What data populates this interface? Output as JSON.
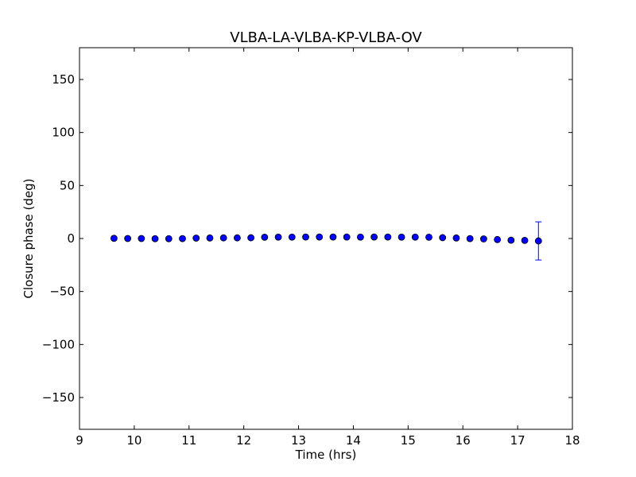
{
  "chart_data": {
    "type": "scatter",
    "title": "VLBA-LA-VLBA-KP-VLBA-OV",
    "xlabel": "Time (hrs)",
    "ylabel": "Closure phase (deg)",
    "xlim": [
      9,
      18
    ],
    "ylim": [
      -180,
      180
    ],
    "xticks": [
      9,
      10,
      11,
      12,
      13,
      14,
      15,
      16,
      17,
      18
    ],
    "xtick_labels": [
      "9",
      "10",
      "11",
      "12",
      "13",
      "14",
      "15",
      "16",
      "17",
      "18"
    ],
    "yticks": [
      -150,
      -100,
      -50,
      0,
      50,
      100,
      150
    ],
    "ytick_labels": [
      "−150",
      "−100",
      "−50",
      "0",
      "50",
      "100",
      "150"
    ],
    "grid": false,
    "marker_color": "#0000ff",
    "points": [
      {
        "x": 9.63,
        "y": 0.2,
        "err": 0
      },
      {
        "x": 9.88,
        "y": 0.0,
        "err": 0
      },
      {
        "x": 10.13,
        "y": 0.0,
        "err": 0
      },
      {
        "x": 10.38,
        "y": -0.2,
        "err": 0
      },
      {
        "x": 10.63,
        "y": -0.2,
        "err": 0
      },
      {
        "x": 10.88,
        "y": -0.1,
        "err": 0
      },
      {
        "x": 11.13,
        "y": 0.4,
        "err": 0
      },
      {
        "x": 11.38,
        "y": 0.5,
        "err": 0
      },
      {
        "x": 11.63,
        "y": 0.6,
        "err": 0
      },
      {
        "x": 11.88,
        "y": 0.6,
        "err": 0
      },
      {
        "x": 12.13,
        "y": 0.7,
        "err": 0
      },
      {
        "x": 12.38,
        "y": 1.2,
        "err": 0
      },
      {
        "x": 12.63,
        "y": 1.3,
        "err": 0
      },
      {
        "x": 12.88,
        "y": 1.3,
        "err": 0
      },
      {
        "x": 13.13,
        "y": 1.4,
        "err": 0
      },
      {
        "x": 13.38,
        "y": 1.4,
        "err": 0
      },
      {
        "x": 13.63,
        "y": 1.4,
        "err": 0
      },
      {
        "x": 13.88,
        "y": 1.4,
        "err": 0
      },
      {
        "x": 14.13,
        "y": 1.3,
        "err": 0
      },
      {
        "x": 14.38,
        "y": 1.4,
        "err": 0
      },
      {
        "x": 14.63,
        "y": 1.4,
        "err": 0
      },
      {
        "x": 14.88,
        "y": 1.3,
        "err": 0
      },
      {
        "x": 15.13,
        "y": 1.3,
        "err": 0
      },
      {
        "x": 15.38,
        "y": 1.2,
        "err": 0
      },
      {
        "x": 15.63,
        "y": 0.8,
        "err": 0
      },
      {
        "x": 15.88,
        "y": 0.5,
        "err": 0
      },
      {
        "x": 16.13,
        "y": -0.1,
        "err": 0
      },
      {
        "x": 16.38,
        "y": -0.4,
        "err": 0
      },
      {
        "x": 16.63,
        "y": -1.0,
        "err": 0
      },
      {
        "x": 16.88,
        "y": -1.6,
        "err": 0
      },
      {
        "x": 17.13,
        "y": -1.8,
        "err": 0
      },
      {
        "x": 17.38,
        "y": -2.3,
        "err": 18
      }
    ]
  }
}
